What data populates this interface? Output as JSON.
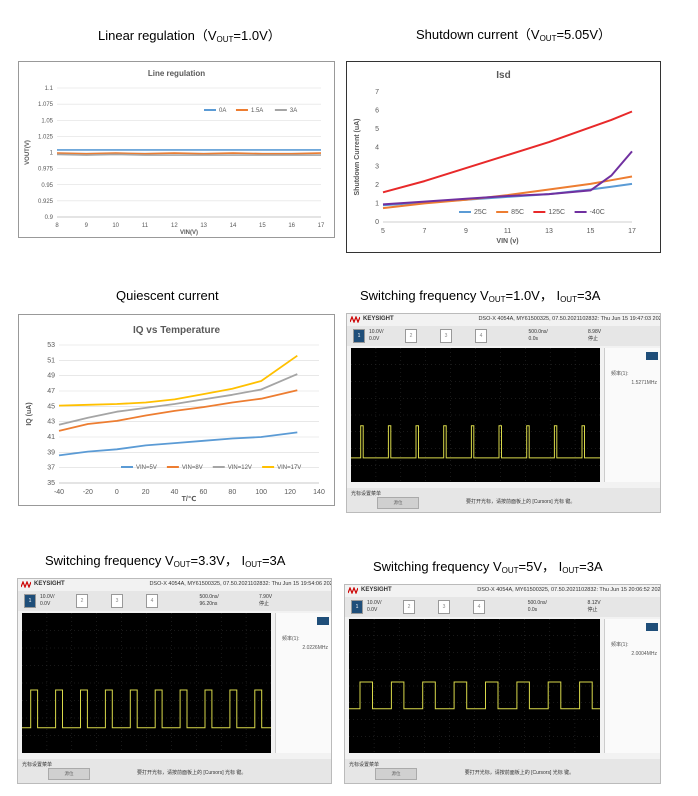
{
  "captions": {
    "c1": {
      "pre": "Linear regulation（V",
      "sub": "OUT",
      "post": "=1.0V）"
    },
    "c2": {
      "pre": "Shutdown current（V",
      "sub": "OUT",
      "post": "=5.05V）"
    },
    "c3": {
      "text": "Quiescent current"
    },
    "c4": {
      "pre": "Switching frequency V",
      "sub": "OUT",
      "mid": "=1.0V， I",
      "sub2": "OUT",
      "post": "=3A"
    },
    "c5": {
      "pre": "Switching frequency V",
      "sub": "OUT",
      "mid": "=3.3V， I",
      "sub2": "OUT",
      "post": "=3A"
    },
    "c6": {
      "pre": "Switching frequency V",
      "sub": "OUT",
      "mid": "=5V， I",
      "sub2": "OUT",
      "post": "=3A"
    }
  },
  "chart_data": [
    {
      "id": "linereg",
      "type": "line",
      "title": "Line regulation",
      "xlabel": "VIN(V)",
      "ylabel": "VOUT(V)",
      "xlim": [
        8,
        17
      ],
      "ylim": [
        0.9,
        1.1
      ],
      "xticks": [
        "8",
        "9",
        "10",
        "11",
        "12",
        "13",
        "14",
        "15",
        "16",
        "17"
      ],
      "yticks": [
        "0.9",
        "0.925",
        "0.95",
        "0.975",
        "1",
        "1.025",
        "1.05",
        "1.075",
        "1.1"
      ],
      "grid": true,
      "legend": "top-right",
      "x": [
        8,
        9,
        10,
        11,
        12,
        13,
        14,
        15,
        16,
        17
      ],
      "series": [
        {
          "name": "0A",
          "color": "#5b9bd5",
          "values": [
            1.004,
            1.004,
            1.004,
            1.004,
            1.004,
            1.004,
            1.004,
            1.004,
            1.004,
            1.004
          ]
        },
        {
          "name": "1.5A",
          "color": "#ed7d31",
          "values": [
            0.999,
            0.998,
            0.999,
            0.998,
            0.999,
            0.998,
            0.999,
            0.998,
            0.998,
            0.999
          ]
        },
        {
          "name": "3A",
          "color": "#a5a5a5",
          "values": [
            0.997,
            0.996,
            0.997,
            0.996,
            0.996,
            0.996,
            0.996,
            0.996,
            0.996,
            0.996
          ]
        }
      ]
    },
    {
      "id": "isd",
      "type": "line",
      "title": "Isd",
      "xlabel": "VIN  (v)",
      "ylabel": "Shutdown Current  (uA)",
      "xlim": [
        5,
        17
      ],
      "ylim": [
        0,
        7
      ],
      "xticks": [
        "5",
        "7",
        "9",
        "11",
        "13",
        "15",
        "17"
      ],
      "yticks": [
        "0",
        "1",
        "2",
        "3",
        "4",
        "5",
        "6",
        "7"
      ],
      "grid": false,
      "legend": "bottom",
      "x": [
        5,
        7,
        9,
        11,
        13,
        15,
        16,
        17
      ],
      "series": [
        {
          "name": "25C",
          "color": "#5b9bd5",
          "values": [
            0.9,
            1.05,
            1.2,
            1.35,
            1.5,
            1.75,
            1.9,
            2.05
          ]
        },
        {
          "name": "85C",
          "color": "#ed7d31",
          "values": [
            0.75,
            1.0,
            1.2,
            1.45,
            1.75,
            2.05,
            2.25,
            2.45
          ]
        },
        {
          "name": "125C",
          "color": "#e8292a",
          "values": [
            1.6,
            2.2,
            2.9,
            3.6,
            4.3,
            5.1,
            5.5,
            5.95
          ]
        },
        {
          "name": "-40C",
          "color": "#7030a0",
          "values": [
            0.95,
            1.1,
            1.25,
            1.4,
            1.5,
            1.7,
            2.5,
            3.8
          ]
        }
      ]
    },
    {
      "id": "iq",
      "type": "line",
      "title": "IQ vs Temperature",
      "xlabel": "T/℃",
      "ylabel": "IQ (uA)",
      "xlim": [
        -40,
        140
      ],
      "ylim": [
        35,
        53
      ],
      "xticks": [
        "-40",
        "-20",
        "0",
        "20",
        "40",
        "60",
        "80",
        "100",
        "120",
        "140"
      ],
      "yticks": [
        "35",
        "37",
        "39",
        "41",
        "43",
        "45",
        "47",
        "49",
        "51",
        "53"
      ],
      "grid": true,
      "legend": "bottom",
      "x": [
        -40,
        -20,
        0,
        20,
        40,
        60,
        80,
        100,
        125
      ],
      "series": [
        {
          "name": "VIN=5V",
          "color": "#5b9bd5",
          "values": [
            38.6,
            39.1,
            39.4,
            39.9,
            40.2,
            40.5,
            40.8,
            41.0,
            41.6
          ]
        },
        {
          "name": "VIN=8V",
          "color": "#ed7d31",
          "values": [
            41.8,
            42.7,
            43.1,
            43.8,
            44.4,
            44.9,
            45.5,
            46.0,
            47.1
          ]
        },
        {
          "name": "VIN=12V",
          "color": "#a5a5a5",
          "values": [
            42.6,
            43.5,
            44.3,
            44.8,
            45.3,
            45.9,
            46.5,
            47.2,
            49.2
          ]
        },
        {
          "name": "VIN=17V",
          "color": "#ffc000",
          "values": [
            45.1,
            45.2,
            45.3,
            45.5,
            45.9,
            46.6,
            47.3,
            48.3,
            51.6
          ]
        }
      ]
    }
  ],
  "scopes": [
    {
      "brand": "KEYSIGHT",
      "model": "DSO-X 4054A, MY61500325, 07.50.2021102832: Thu Jun 15 19:47:03 2023",
      "ch_scale": "10.0V/",
      "ch_offset": "0.0V",
      "tb_scale": "500.0ns/",
      "tb_offset": "0.0s",
      "trig": "8.98V",
      "stop": "停止",
      "meas_label": "频率(1):",
      "meas": "1.5271MHz",
      "foot_label": "光标设置菜单",
      "foot_btn": "源位",
      "foot_hint": "要打开光标，请按前面板上的 [Cursors] 光标 键。",
      "duty": 0.18,
      "periods": 9,
      "level": 0.58,
      "low": 0.82
    },
    {
      "brand": "KEYSIGHT",
      "model": "DSO-X 4054A, MY61500325, 07.50.2021102832: Thu Jun 15 19:54:06 2023",
      "ch_scale": "10.0V/",
      "ch_offset": "0.0V",
      "tb_scale": "500.0ns/",
      "tb_offset": "96.20ns",
      "trig": "7.90V",
      "stop": "停止",
      "meas_label": "频率(1):",
      "meas": "2.0226MHz",
      "foot_label": "光标设置菜单",
      "foot_btn": "源位",
      "foot_hint": "要打开光标，请按前面板上的 [Cursors] 光标 键。",
      "duty": 0.55,
      "periods": 10,
      "level": 0.55,
      "low": 0.82
    },
    {
      "brand": "KEYSIGHT",
      "model": "DSO-X 4054A, MY61500325, 07.50.2021102832: Thu Jun 15 20:06:52 2023",
      "ch_scale": "10.0V/",
      "ch_offset": "0.0V",
      "tb_scale": "500.0ns/",
      "tb_offset": "0.0s",
      "trig": "8.12V",
      "stop": "停止",
      "meas_label": "频率(1):",
      "meas": "2.0004MHz",
      "foot_label": "光标设置菜单",
      "foot_btn": "源位",
      "foot_hint": "要打开光标，请按前面板上的 [Cursors] 光标 键。",
      "duty": 0.8,
      "periods": 8,
      "level": 0.47,
      "low": 0.67
    }
  ]
}
